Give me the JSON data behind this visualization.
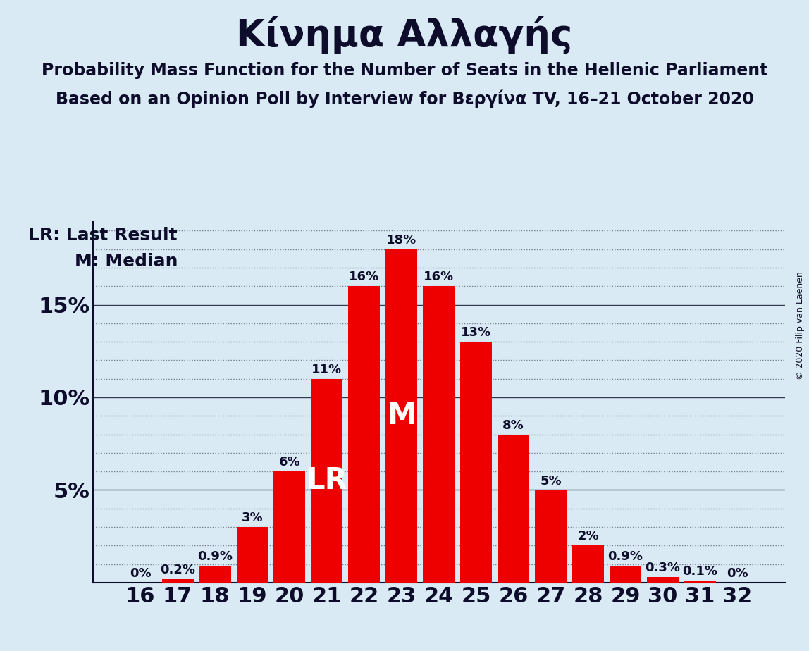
{
  "title": "Κίνημα Αλλαγής",
  "subtitle1": "Probability Mass Function for the Number of Seats in the Hellenic Parliament",
  "subtitle2": "Based on an Opinion Poll by Interview for Βεργίνα TV, 16–21 October 2020",
  "copyright": "© 2020 Filip van Laenen",
  "seats": [
    16,
    17,
    18,
    19,
    20,
    21,
    22,
    23,
    24,
    25,
    26,
    27,
    28,
    29,
    30,
    31,
    32
  ],
  "probs": [
    0.0,
    0.2,
    0.9,
    3.0,
    6.0,
    11.0,
    16.0,
    18.0,
    16.0,
    13.0,
    8.0,
    5.0,
    2.0,
    0.9,
    0.3,
    0.1,
    0.0
  ],
  "bar_color": "#ee0000",
  "background_color": "#daeaf5",
  "lr_seat": 21,
  "median_seat": 23,
  "lr_label": "LR",
  "median_label": "M",
  "legend_lr": "LR: Last Result",
  "legend_m": "M: Median",
  "ylim": [
    0,
    19.5
  ],
  "yticks": [
    0,
    5,
    10,
    15
  ],
  "ytick_labels": [
    "",
    "5%",
    "10%",
    "15%"
  ],
  "bar_label_fontsize": 13,
  "title_fontsize": 38,
  "subtitle_fontsize": 17,
  "axis_tick_fontsize": 22,
  "legend_fontsize": 18,
  "lr_m_fontsize": 30,
  "axis_color": "#0d0d2b",
  "grid_color": "#0d0d2b",
  "copyright_fontsize": 9
}
